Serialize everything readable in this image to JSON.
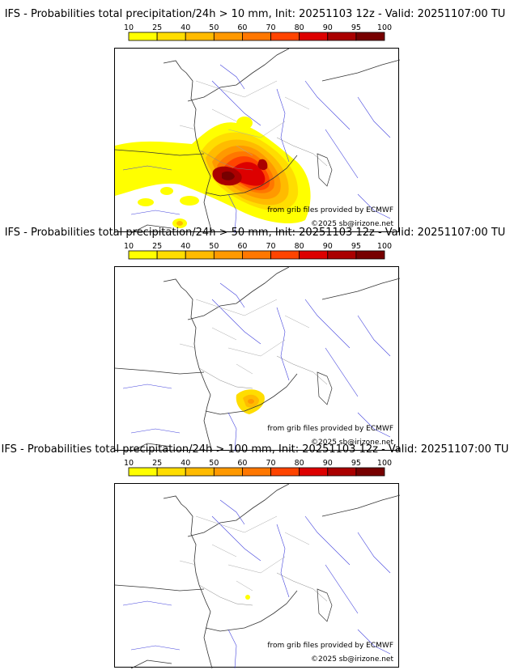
{
  "colorbar": {
    "ticks": [
      "10",
      "25",
      "40",
      "50",
      "60",
      "70",
      "80",
      "90",
      "95",
      "100"
    ],
    "colors": [
      "#ffff00",
      "#ffdd00",
      "#ffbb00",
      "#ff9900",
      "#ff7700",
      "#ff4400",
      "#dd0000",
      "#aa0000",
      "#770000"
    ]
  },
  "panels": [
    {
      "title": "IFS - Probabilities total precipitation/24h > 10 mm, Init: 20251103 12z - Valid: 20251107:00 TU",
      "threshold_mm": 10
    },
    {
      "title": "IFS - Probabilities total precipitation/24h > 50 mm, Init: 20251103 12z - Valid: 20251107:00 TU",
      "threshold_mm": 50
    },
    {
      "title": "IFS - Probabilities total precipitation/24h > 100 mm, Init: 20251103 12z - Valid: 20251107:00 TU",
      "threshold_mm": 100
    }
  ],
  "credits": {
    "source": "from grib files provided by ECMWF",
    "copyright": "©2025 sb@irizone.net"
  }
}
